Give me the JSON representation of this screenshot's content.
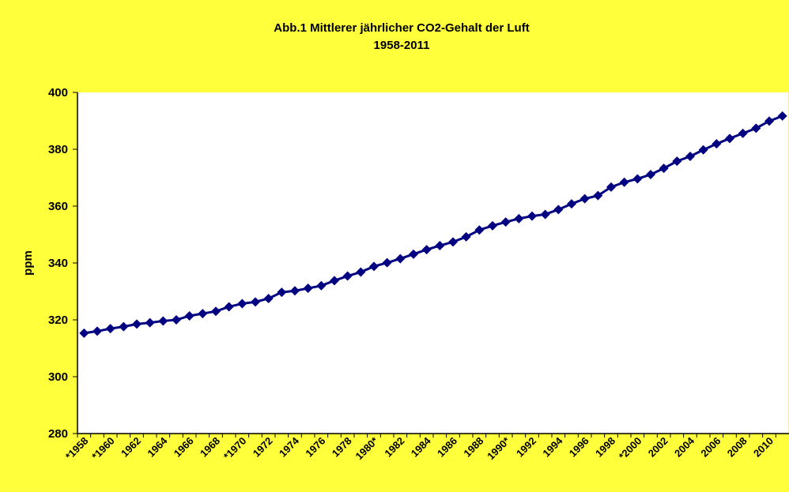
{
  "chart_data": {
    "type": "line",
    "title": "Abb.1 Mittlerer jährlicher CO2-Gehalt der Luft",
    "subtitle": "1958-2011",
    "y_label": "ppm",
    "categories": [
      "*1958",
      null,
      "*1960",
      null,
      "1962",
      null,
      "1964",
      null,
      "1966",
      null,
      "1968",
      null,
      "*1970",
      null,
      "1972",
      null,
      "1974",
      null,
      "1976",
      null,
      "1978",
      null,
      "1980*",
      null,
      "1982",
      null,
      "1984",
      null,
      "1986",
      null,
      "1988",
      null,
      "1990*",
      null,
      "1992",
      null,
      "1994",
      null,
      "1996",
      null,
      "1998",
      null,
      "*2000",
      null,
      "2002",
      null,
      "2004",
      null,
      "2006",
      null,
      "2008",
      null,
      "2010",
      null
    ],
    "series": [
      {
        "name": "CO2",
        "color": "#000080",
        "values": [
          315.3,
          316.0,
          316.9,
          317.6,
          318.5,
          319.0,
          319.6,
          320.0,
          321.4,
          322.2,
          323.0,
          324.6,
          325.7,
          326.3,
          327.5,
          329.7,
          330.2,
          331.1,
          332.0,
          333.8,
          335.4,
          336.8,
          338.8,
          340.1,
          341.5,
          343.1,
          344.7,
          346.1,
          347.4,
          349.2,
          351.6,
          353.1,
          354.4,
          355.6,
          356.5,
          357.1,
          358.8,
          360.8,
          362.6,
          363.7,
          366.7,
          368.4,
          369.6,
          371.1,
          373.3,
          375.8,
          377.5,
          379.8,
          381.9,
          383.8,
          385.6,
          387.4,
          389.9,
          391.7
        ]
      }
    ],
    "ylim": [
      280,
      400
    ],
    "yticks": [
      280,
      300,
      320,
      340,
      360,
      380,
      400
    ],
    "grid": false
  }
}
